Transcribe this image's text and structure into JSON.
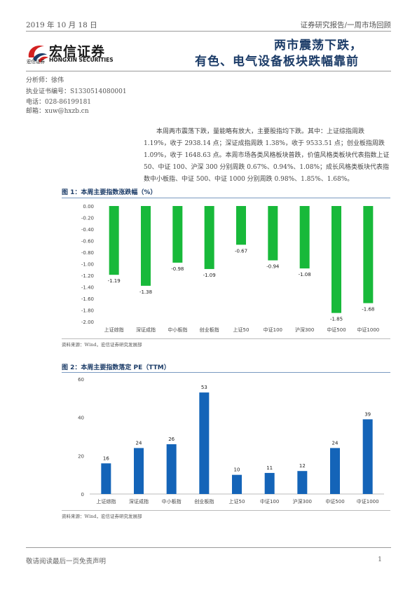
{
  "header": {
    "date": "2019 年 10 月 18 日",
    "report_type": "证券研究报告/一周市场回顾"
  },
  "logo": {
    "name_cn": "宏信证券",
    "name_en": "HONGXIN SECURITIES",
    "name_cn_small": "宏信证券"
  },
  "title": {
    "line1": "两市震荡下跌，",
    "line2": "有色、电气设备板块跌幅靠前"
  },
  "analyst": {
    "name": "分析师：徐伟",
    "license": "执业证书编号：S1330514080001",
    "phone": "电话：028-86199181",
    "email": "邮箱：xuw@hxzb.cn"
  },
  "summary": "本周两市震荡下跌，量能略有放大，主要股指均下跌。其中：上证综指周跌 1.19%，收于 2938.14 点；深证成指周跌 1.38%，收于 9533.51 点；创业板指周跌 1.09%，收于 1648.63 点。本周市场各类风格板块普跌，价值风格类板块代表指数上证 50、中证 100、沪深 300 分别周跌 0.67%、0.94%、1.08%；成长风格类板块代表指数中小板指、中证 500、中证 1000 分别周跌 0.98%、1.85%、1.68%。",
  "footer": {
    "disclaimer": "敬请阅读最后一页免责声明",
    "page": "1"
  },
  "chart_data": [
    {
      "type": "bar",
      "title": "图 1：本周主要指数涨跌幅（%）",
      "categories": [
        "上证综指",
        "深证成指",
        "中小板指",
        "创业板指",
        "上证50",
        "中证100",
        "沪深300",
        "中证500",
        "中证1000"
      ],
      "values": [
        -1.19,
        -1.38,
        -0.98,
        -1.09,
        -0.67,
        -0.94,
        -1.08,
        -1.85,
        -1.68
      ],
      "value_labels": [
        "-1.19",
        "-1.38",
        "-0.98",
        "-1.09",
        "-0.67",
        "-0.94",
        "-1.08",
        "-1.85",
        "-1.68"
      ],
      "ylim": [
        -2.0,
        0.0
      ],
      "yticks": [
        "0.00",
        "-0.20",
        "-0.40",
        "-0.60",
        "-0.80",
        "-1.00",
        "-1.20",
        "-1.40",
        "-1.60",
        "-1.80",
        "-2.00"
      ],
      "bar_color": "#18b93a",
      "grid": false,
      "source": "资料来源：Wind，宏信证券研究发展部"
    },
    {
      "type": "bar",
      "title": "图 2：本周主要指数落定 PE（TTM）",
      "categories": [
        "上证综指",
        "深证成指",
        "中小板指",
        "创业板指",
        "上证50",
        "中证100",
        "沪深300",
        "中证500",
        "中证1000"
      ],
      "values": [
        16,
        24,
        26,
        53,
        10,
        11,
        12,
        24,
        39
      ],
      "value_labels": [
        "16",
        "24",
        "26",
        "53",
        "10",
        "11",
        "12",
        "24",
        "39"
      ],
      "ylim": [
        0,
        60
      ],
      "yticks": [
        "60",
        "40",
        "20",
        "0"
      ],
      "bar_color": "#1464b8",
      "grid": false,
      "source": "资料来源：Wind，宏信证券研究发展部"
    }
  ]
}
